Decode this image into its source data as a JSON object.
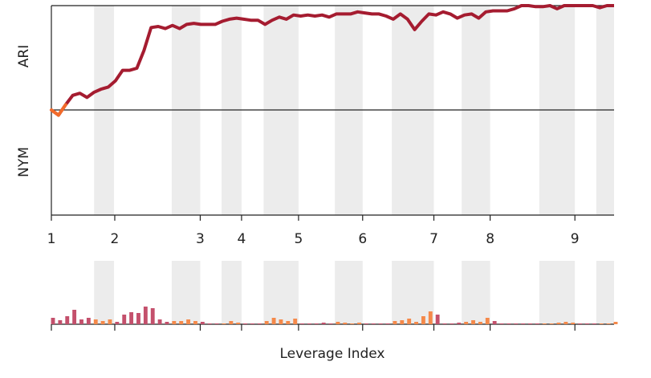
{
  "chart_data": {
    "type": "line",
    "top_label": "ARI",
    "bottom_label": "NYM",
    "xlabel": "Leverage Index",
    "x": [
      0,
      1,
      2,
      3,
      4,
      5,
      6,
      7,
      8,
      9,
      10,
      11,
      12,
      13,
      14,
      15,
      16,
      17,
      18,
      19,
      20,
      21,
      22,
      23,
      24,
      25,
      26,
      27,
      28,
      29,
      30,
      31,
      32,
      33,
      34,
      35,
      36,
      37,
      38,
      39,
      40,
      41,
      42,
      43,
      44,
      45,
      46,
      47,
      48,
      49,
      50,
      51,
      52,
      53,
      54,
      55,
      56,
      57,
      58,
      59,
      60,
      61,
      62,
      63,
      64,
      65,
      66,
      67,
      68,
      69,
      70,
      71,
      72,
      73,
      74,
      75,
      76,
      77,
      78,
      79
    ],
    "xlim": [
      0,
      79
    ],
    "xticks": [
      {
        "value": 0,
        "label": "1"
      },
      {
        "value": 8.9,
        "label": "2"
      },
      {
        "value": 20.9,
        "label": "3"
      },
      {
        "value": 26.7,
        "label": "4"
      },
      {
        "value": 34.7,
        "label": "5"
      },
      {
        "value": 43.7,
        "label": "6"
      },
      {
        "value": 53.7,
        "label": "7"
      },
      {
        "value": 61.6,
        "label": "8"
      },
      {
        "value": 73.5,
        "label": "9"
      }
    ],
    "ylim": [
      -1,
      1
    ],
    "color": "#a51c30",
    "negative_color": "#f26b2a",
    "values": [
      0,
      -0.05,
      0.05,
      0.14,
      0.16,
      0.12,
      0.17,
      0.2,
      0.22,
      0.28,
      0.38,
      0.38,
      0.4,
      0.57,
      0.79,
      0.8,
      0.78,
      0.81,
      0.78,
      0.82,
      0.83,
      0.82,
      0.82,
      0.82,
      0.85,
      0.87,
      0.88,
      0.87,
      0.86,
      0.86,
      0.82,
      0.86,
      0.89,
      0.87,
      0.91,
      0.9,
      0.91,
      0.9,
      0.91,
      0.89,
      0.92,
      0.92,
      0.92,
      0.94,
      0.93,
      0.92,
      0.92,
      0.9,
      0.87,
      0.92,
      0.87,
      0.77,
      0.85,
      0.92,
      0.91,
      0.94,
      0.92,
      0.88,
      0.91,
      0.92,
      0.88,
      0.94,
      0.95,
      0.95,
      0.95,
      0.97,
      1,
      1,
      0.99,
      0.99,
      1,
      0.97,
      1,
      1,
      1,
      1,
      1,
      0.98,
      1,
      1
    ],
    "bands": [
      [
        6.0,
        8.8
      ],
      [
        16.9,
        20.9
      ],
      [
        23.9,
        26.7
      ],
      [
        29.8,
        34.7
      ],
      [
        39.8,
        43.7
      ],
      [
        47.8,
        53.7
      ],
      [
        57.6,
        61.6
      ],
      [
        68.5,
        73.5
      ],
      [
        76.5,
        79
      ]
    ],
    "band_color": "#ececec",
    "bars": {
      "values": [
        8,
        5,
        10,
        18,
        6,
        8,
        6,
        4,
        6,
        3,
        12,
        15,
        14,
        22,
        20,
        6,
        3,
        4,
        4,
        6,
        4,
        3,
        1,
        1,
        1,
        4,
        2,
        1,
        1,
        1,
        4,
        8,
        6,
        4,
        7,
        1,
        1,
        1,
        2,
        1,
        3,
        2,
        1,
        2,
        1,
        1,
        1,
        1,
        4,
        5,
        7,
        3,
        10,
        16,
        12,
        1,
        1,
        2,
        3,
        5,
        3,
        8,
        4,
        1,
        1,
        1,
        1,
        1,
        1,
        1,
        1,
        2,
        3,
        2,
        1,
        1,
        1,
        1,
        1,
        3
      ],
      "ylim": [
        0,
        30
      ],
      "color": "#c4506c",
      "band_bar_color": "#f5894a"
    }
  }
}
